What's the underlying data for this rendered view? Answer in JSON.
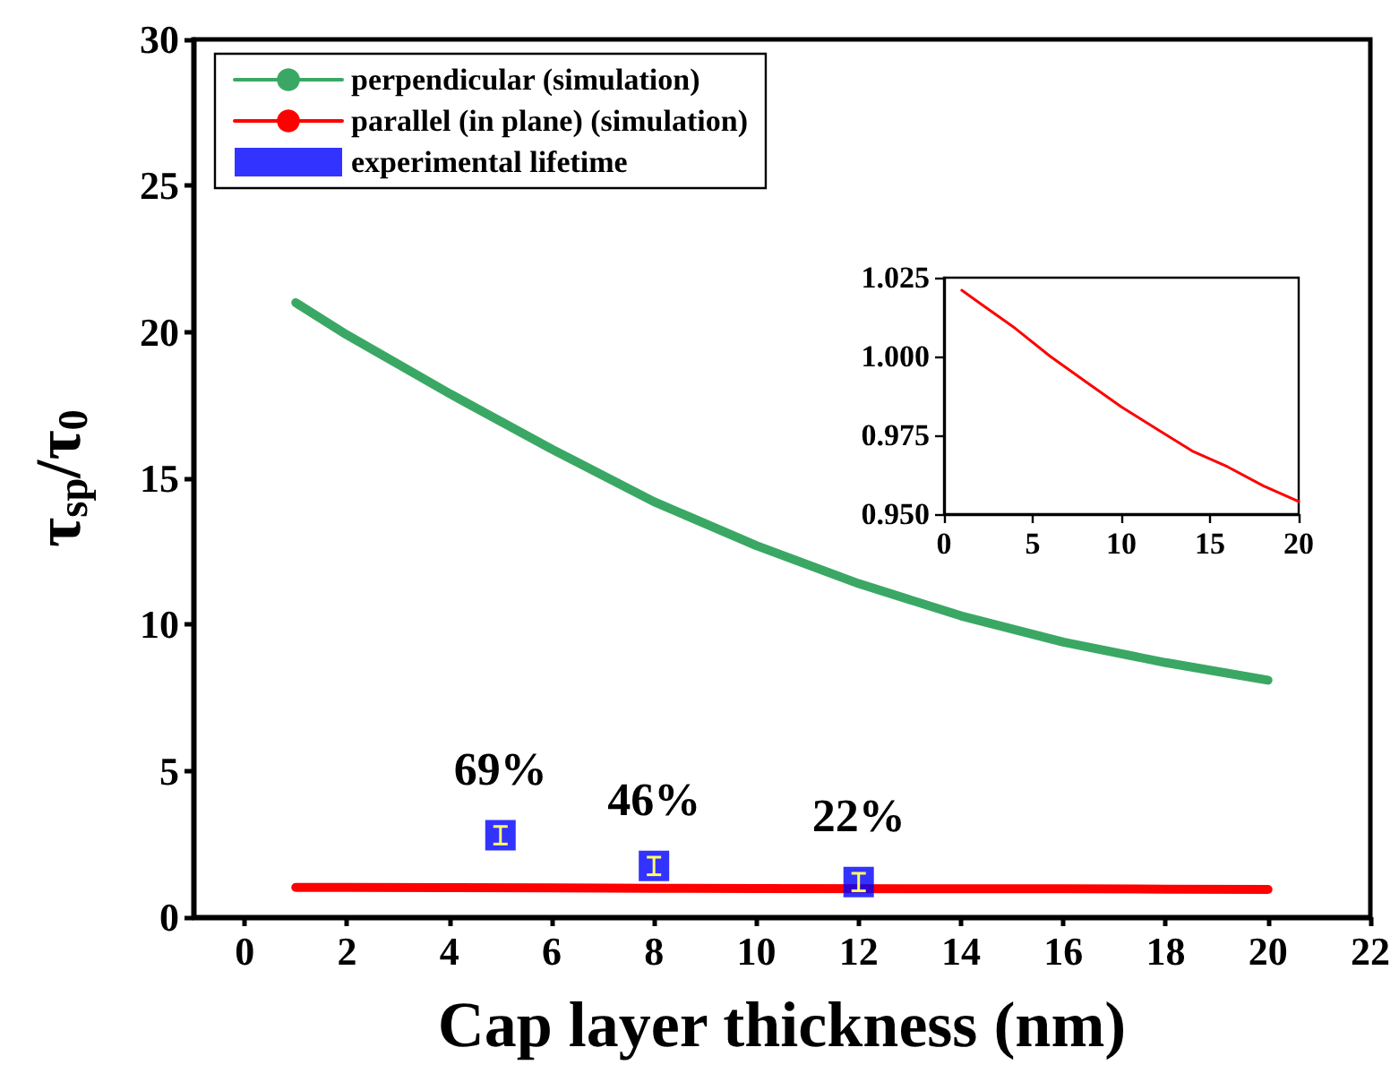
{
  "chart_data": [
    {
      "type": "line",
      "xlabel": "Cap layer thickness (nm)",
      "ylabel": "τ$_{sp}$/τ$_{0}$",
      "xlim": [
        -1,
        22
      ],
      "xticks": [
        0,
        2,
        4,
        6,
        8,
        10,
        12,
        14,
        16,
        18,
        20,
        22
      ],
      "ylim": [
        0,
        30
      ],
      "yticks": [
        0,
        5,
        10,
        15,
        20,
        25,
        30
      ],
      "grid": false,
      "legend": "top left",
      "series": [
        {
          "name": "perpendicular (simulation)",
          "marker": "none",
          "color": "#3aa864",
          "x": [
            1,
            2,
            4,
            6,
            8,
            10,
            12,
            14,
            16,
            18,
            20
          ],
          "values": [
            21,
            19.9,
            17.9,
            16.0,
            14.2,
            12.7,
            11.4,
            10.3,
            9.4,
            8.7,
            8.1
          ]
        },
        {
          "name": "parallel (in plane) (simulation)",
          "marker": "none",
          "color": "#ff0000",
          "x": [
            1,
            2,
            4,
            6,
            8,
            10,
            13,
            14,
            16,
            18,
            20
          ],
          "values": [
            1.02,
            1.02,
            1.01,
            1.0,
            0.99,
            0.98,
            0.97,
            0.97,
            0.97,
            0.96,
            0.95
          ]
        },
        {
          "name": "experimental lifetime",
          "type": "scatter",
          "marker": "square",
          "color": "#0000ff",
          "x": [
            5,
            8,
            12
          ],
          "values": [
            2.8,
            1.75,
            1.2
          ],
          "errors": [
            0.3,
            0.3,
            0.3
          ]
        }
      ],
      "annotations": [
        {
          "text": "69%",
          "x": 5,
          "y": 2.8
        },
        {
          "text": "46%",
          "x": 8,
          "y": 1.75
        },
        {
          "text": "22%",
          "x": 12,
          "y": 1.2
        }
      ]
    },
    {
      "type": "line",
      "xlim": [
        0,
        20
      ],
      "xticks": [
        0,
        5,
        10,
        15,
        20
      ],
      "ylim": [
        0.95,
        1.025
      ],
      "yticks": [
        {
          "value": 0.95,
          "label": "0.950"
        },
        {
          "value": 0.975,
          "label": "0.975"
        },
        {
          "value": 1.0,
          "label": "1.000"
        },
        {
          "value": 1.025,
          "label": "1.025"
        }
      ],
      "grid": false,
      "series": [
        {
          "marker": "none",
          "color": "#ff0000",
          "x": [
            1,
            2,
            4,
            6,
            8,
            10,
            12,
            14,
            16,
            18,
            20
          ],
          "values": [
            1.021,
            1.017,
            1.009,
            1.0,
            0.992,
            0.984,
            0.977,
            0.97,
            0.965,
            0.959,
            0.954
          ]
        }
      ]
    }
  ]
}
